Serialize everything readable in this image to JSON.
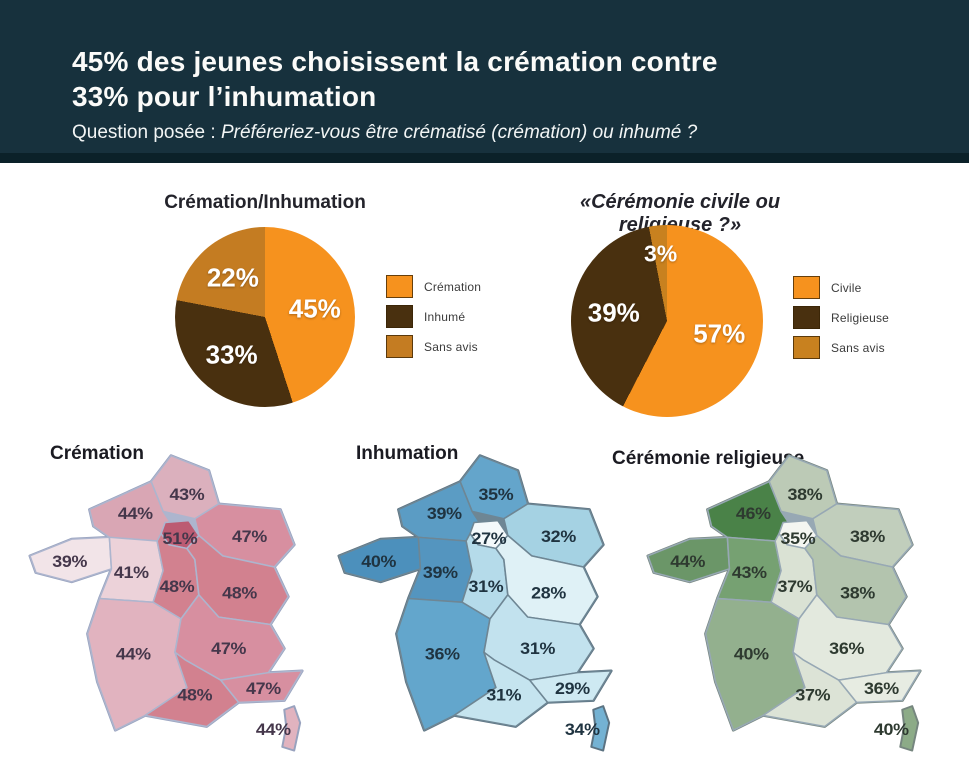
{
  "header": {
    "bg_color": "#17313D",
    "strip_color": "#0B2129",
    "title_line1": "45% des jeunes choisissent la crémation contre",
    "title_line2": "33% pour l’inhumation",
    "subtitle_prefix": "Question posée : ",
    "subtitle_italic": "Préféreriez-vous être crématisé (crémation) ou inhumé ?"
  },
  "chart_data": [
    {
      "type": "pie",
      "title": "Crémation/Inhumation",
      "legend_position": "right",
      "slices": [
        {
          "label": "Crémation",
          "value": 45,
          "color": "#F6921E"
        },
        {
          "label": "Inhumé",
          "value": 33,
          "color": "#49300F"
        },
        {
          "label": "Sans avis",
          "value": 22,
          "color": "#C47C22"
        }
      ]
    },
    {
      "type": "pie",
      "title": "«Cérémonie civile ou religieuse ?»",
      "legend_position": "right",
      "slices": [
        {
          "label": "Civile",
          "value": 57,
          "color": "#F6921E"
        },
        {
          "label": "Religieuse",
          "value": 39,
          "color": "#49300F"
        },
        {
          "label": "Sans avis",
          "value": 3,
          "color": "#C8811F"
        }
      ]
    },
    {
      "type": "choropleth",
      "title": "Crémation",
      "unit": "%",
      "border_color": "#ADB5CE",
      "coast_color": "#98A2BE",
      "label_color": "#45374B",
      "regions": [
        {
          "region": "hauts-de-france",
          "value": 43,
          "fill": "#DBB0BD"
        },
        {
          "region": "normandie",
          "value": 44,
          "fill": "#D9A6B4"
        },
        {
          "region": "ile-de-france",
          "value": 51,
          "fill": "#BC5B72"
        },
        {
          "region": "grand-est",
          "value": 47,
          "fill": "#D78FA0"
        },
        {
          "region": "bretagne",
          "value": 39,
          "fill": "#F2E4E8"
        },
        {
          "region": "pays-de-la-loire",
          "value": 41,
          "fill": "#ECD2D9"
        },
        {
          "region": "centre-val-de-loire",
          "value": 48,
          "fill": "#D2818F"
        },
        {
          "region": "bourgogne-franche-comte",
          "value": 48,
          "fill": "#D2818F"
        },
        {
          "region": "nouvelle-aquitaine",
          "value": 44,
          "fill": "#E1B3BF"
        },
        {
          "region": "auvergne-rhone-alpes",
          "value": 47,
          "fill": "#D78FA0"
        },
        {
          "region": "occitanie",
          "value": 48,
          "fill": "#D2818F"
        },
        {
          "region": "provence-alpes-cote-dazur",
          "value": 47,
          "fill": "#D78FA0"
        },
        {
          "region": "corse",
          "value": 44,
          "fill": "#E1B3BF"
        }
      ]
    },
    {
      "type": "choropleth",
      "title": "Inhumation",
      "unit": "%",
      "border_color": "#6E8694",
      "coast_color": "#5C7382",
      "label_color": "#1F3340",
      "regions": [
        {
          "region": "hauts-de-france",
          "value": 35,
          "fill": "#64A5CB"
        },
        {
          "region": "normandie",
          "value": 39,
          "fill": "#5B9CC4"
        },
        {
          "region": "ile-de-france",
          "value": 27,
          "fill": "#F3F9FB"
        },
        {
          "region": "grand-est",
          "value": 32,
          "fill": "#A5D2E3"
        },
        {
          "region": "bretagne",
          "value": 40,
          "fill": "#4C90BC"
        },
        {
          "region": "pays-de-la-loire",
          "value": 39,
          "fill": "#5495BF"
        },
        {
          "region": "centre-val-de-loire",
          "value": 31,
          "fill": "#B5DBEA"
        },
        {
          "region": "bourgogne-franche-comte",
          "value": 28,
          "fill": "#DFF1F6"
        },
        {
          "region": "nouvelle-aquitaine",
          "value": 36,
          "fill": "#63A6CC"
        },
        {
          "region": "auvergne-rhone-alpes",
          "value": 31,
          "fill": "#C2E2EE"
        },
        {
          "region": "occitanie",
          "value": 31,
          "fill": "#C5E4EF"
        },
        {
          "region": "provence-alpes-cote-dazur",
          "value": 29,
          "fill": "#CEE9F2"
        },
        {
          "region": "corse",
          "value": 34,
          "fill": "#74B2D3"
        }
      ]
    },
    {
      "type": "choropleth",
      "title": "Cérémonie religieuse",
      "unit": "%",
      "border_color": "#97A8B4",
      "coast_color": "#76867F",
      "label_color": "#2E3A30",
      "regions": [
        {
          "region": "hauts-de-france",
          "value": 38,
          "fill": "#BCCAB6"
        },
        {
          "region": "normandie",
          "value": 46,
          "fill": "#4A8248"
        },
        {
          "region": "ile-de-france",
          "value": 35,
          "fill": "#F4F6F1"
        },
        {
          "region": "grand-est",
          "value": 38,
          "fill": "#C1CEBC"
        },
        {
          "region": "bretagne",
          "value": 44,
          "fill": "#6B9668"
        },
        {
          "region": "pays-de-la-loire",
          "value": 43,
          "fill": "#76A172"
        },
        {
          "region": "centre-val-de-loire",
          "value": 37,
          "fill": "#DAE2D4"
        },
        {
          "region": "bourgogne-franche-comte",
          "value": 38,
          "fill": "#B3C4AE"
        },
        {
          "region": "nouvelle-aquitaine",
          "value": 40,
          "fill": "#93B08E"
        },
        {
          "region": "auvergne-rhone-alpes",
          "value": 36,
          "fill": "#E3E9DE"
        },
        {
          "region": "occitanie",
          "value": 37,
          "fill": "#DCE3D6"
        },
        {
          "region": "provence-alpes-cote-dazur",
          "value": 36,
          "fill": "#E7ECE2"
        },
        {
          "region": "corse",
          "value": 40,
          "fill": "#8CAB87"
        }
      ]
    }
  ]
}
